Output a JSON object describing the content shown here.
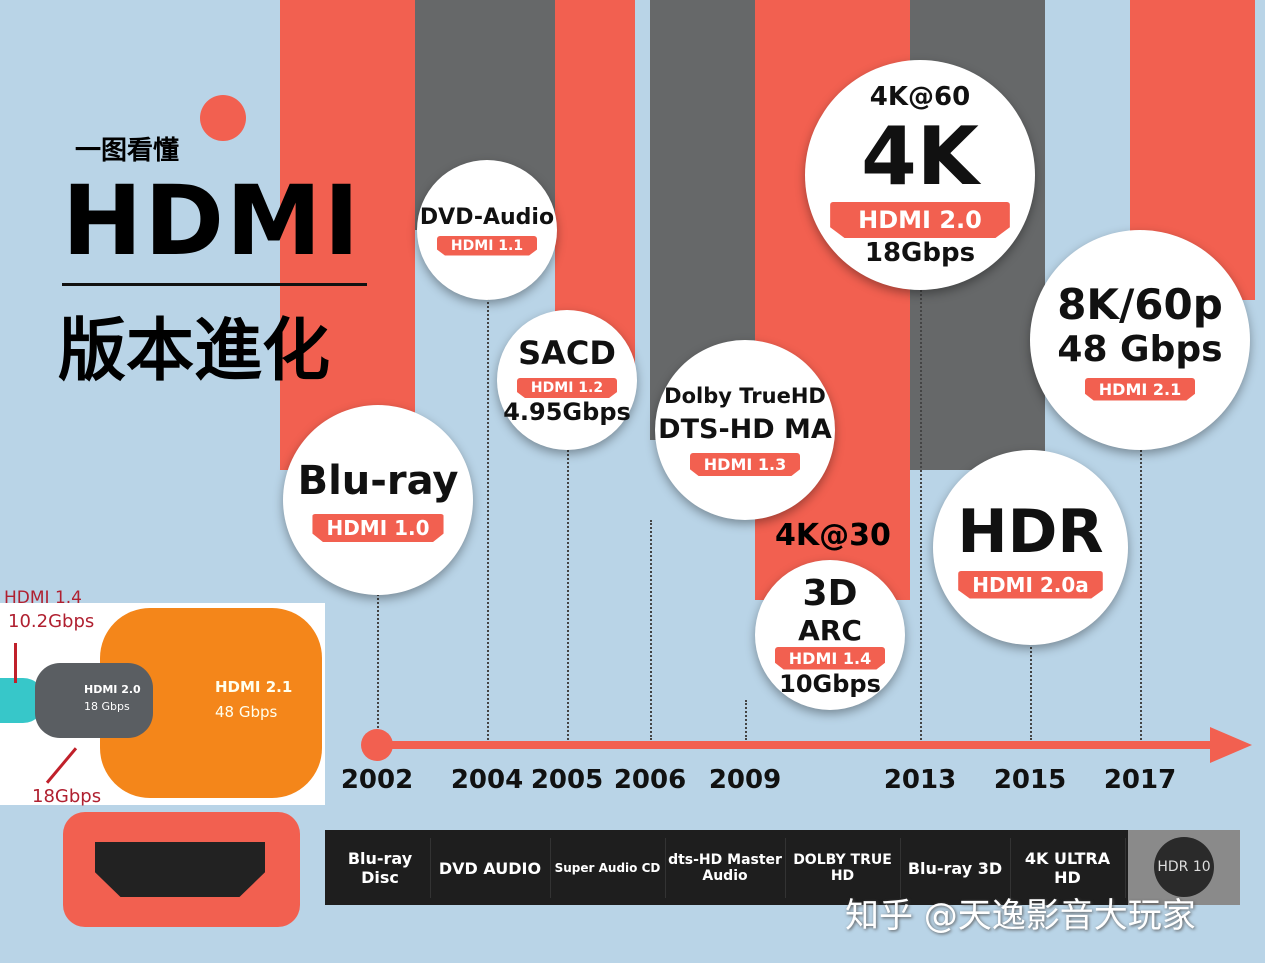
{
  "title": {
    "brand": "一图看懂",
    "main": "HDMI",
    "sub": "版本進化"
  },
  "milestones": [
    {
      "year": "2002",
      "feature": "Blu-ray",
      "version": "HDMI 1.0"
    },
    {
      "year": "2004",
      "feature": "DVD-Audio",
      "version": "HDMI 1.1"
    },
    {
      "year": "2005",
      "feature": "SACD",
      "version": "HDMI 1.2",
      "bandwidth": "4.95Gbps"
    },
    {
      "year": "2006",
      "feature": "Dolby TrueHD",
      "feature2": "DTS-HD MA",
      "version": "HDMI 1.3"
    },
    {
      "year": "2009",
      "top": "4K@30",
      "feature": "3D",
      "feature2": "ARC",
      "version": "HDMI 1.4",
      "bandwidth": "10Gbps"
    },
    {
      "year": "2013",
      "top": "4K@60",
      "feature": "4K",
      "version": "HDMI 2.0",
      "bandwidth": "18Gbps"
    },
    {
      "year": "2015",
      "feature": "HDR",
      "version": "HDMI 2.0a"
    },
    {
      "year": "2017",
      "feature": "8K/60p",
      "feature2": "48 Gbps",
      "version": "HDMI 2.1"
    }
  ],
  "cable": {
    "hdmi14": "HDMI 1.4",
    "hdmi14_bw": "10.2Gbps",
    "hdmi20": "HDMI 2.0",
    "hdmi20_bw": "18 Gbps",
    "hdmi20_arrow": "18Gbps",
    "hdmi21": "HDMI 2.1",
    "hdmi21_bw": "48 Gbps"
  },
  "logos": [
    "Blu-ray Disc",
    "DVD AUDIO",
    "Super Audio CD",
    "dts-HD Master Audio",
    "DOLBY TRUE HD",
    "Blu-ray 3D",
    "4K ULTRA HD",
    "HDR 10"
  ],
  "watermark": "知乎 @天逸影音大玩家",
  "colors": {
    "red": "#f26050",
    "gray": "#666869",
    "background": "#b9d4e7",
    "orange": "#f4861a"
  }
}
